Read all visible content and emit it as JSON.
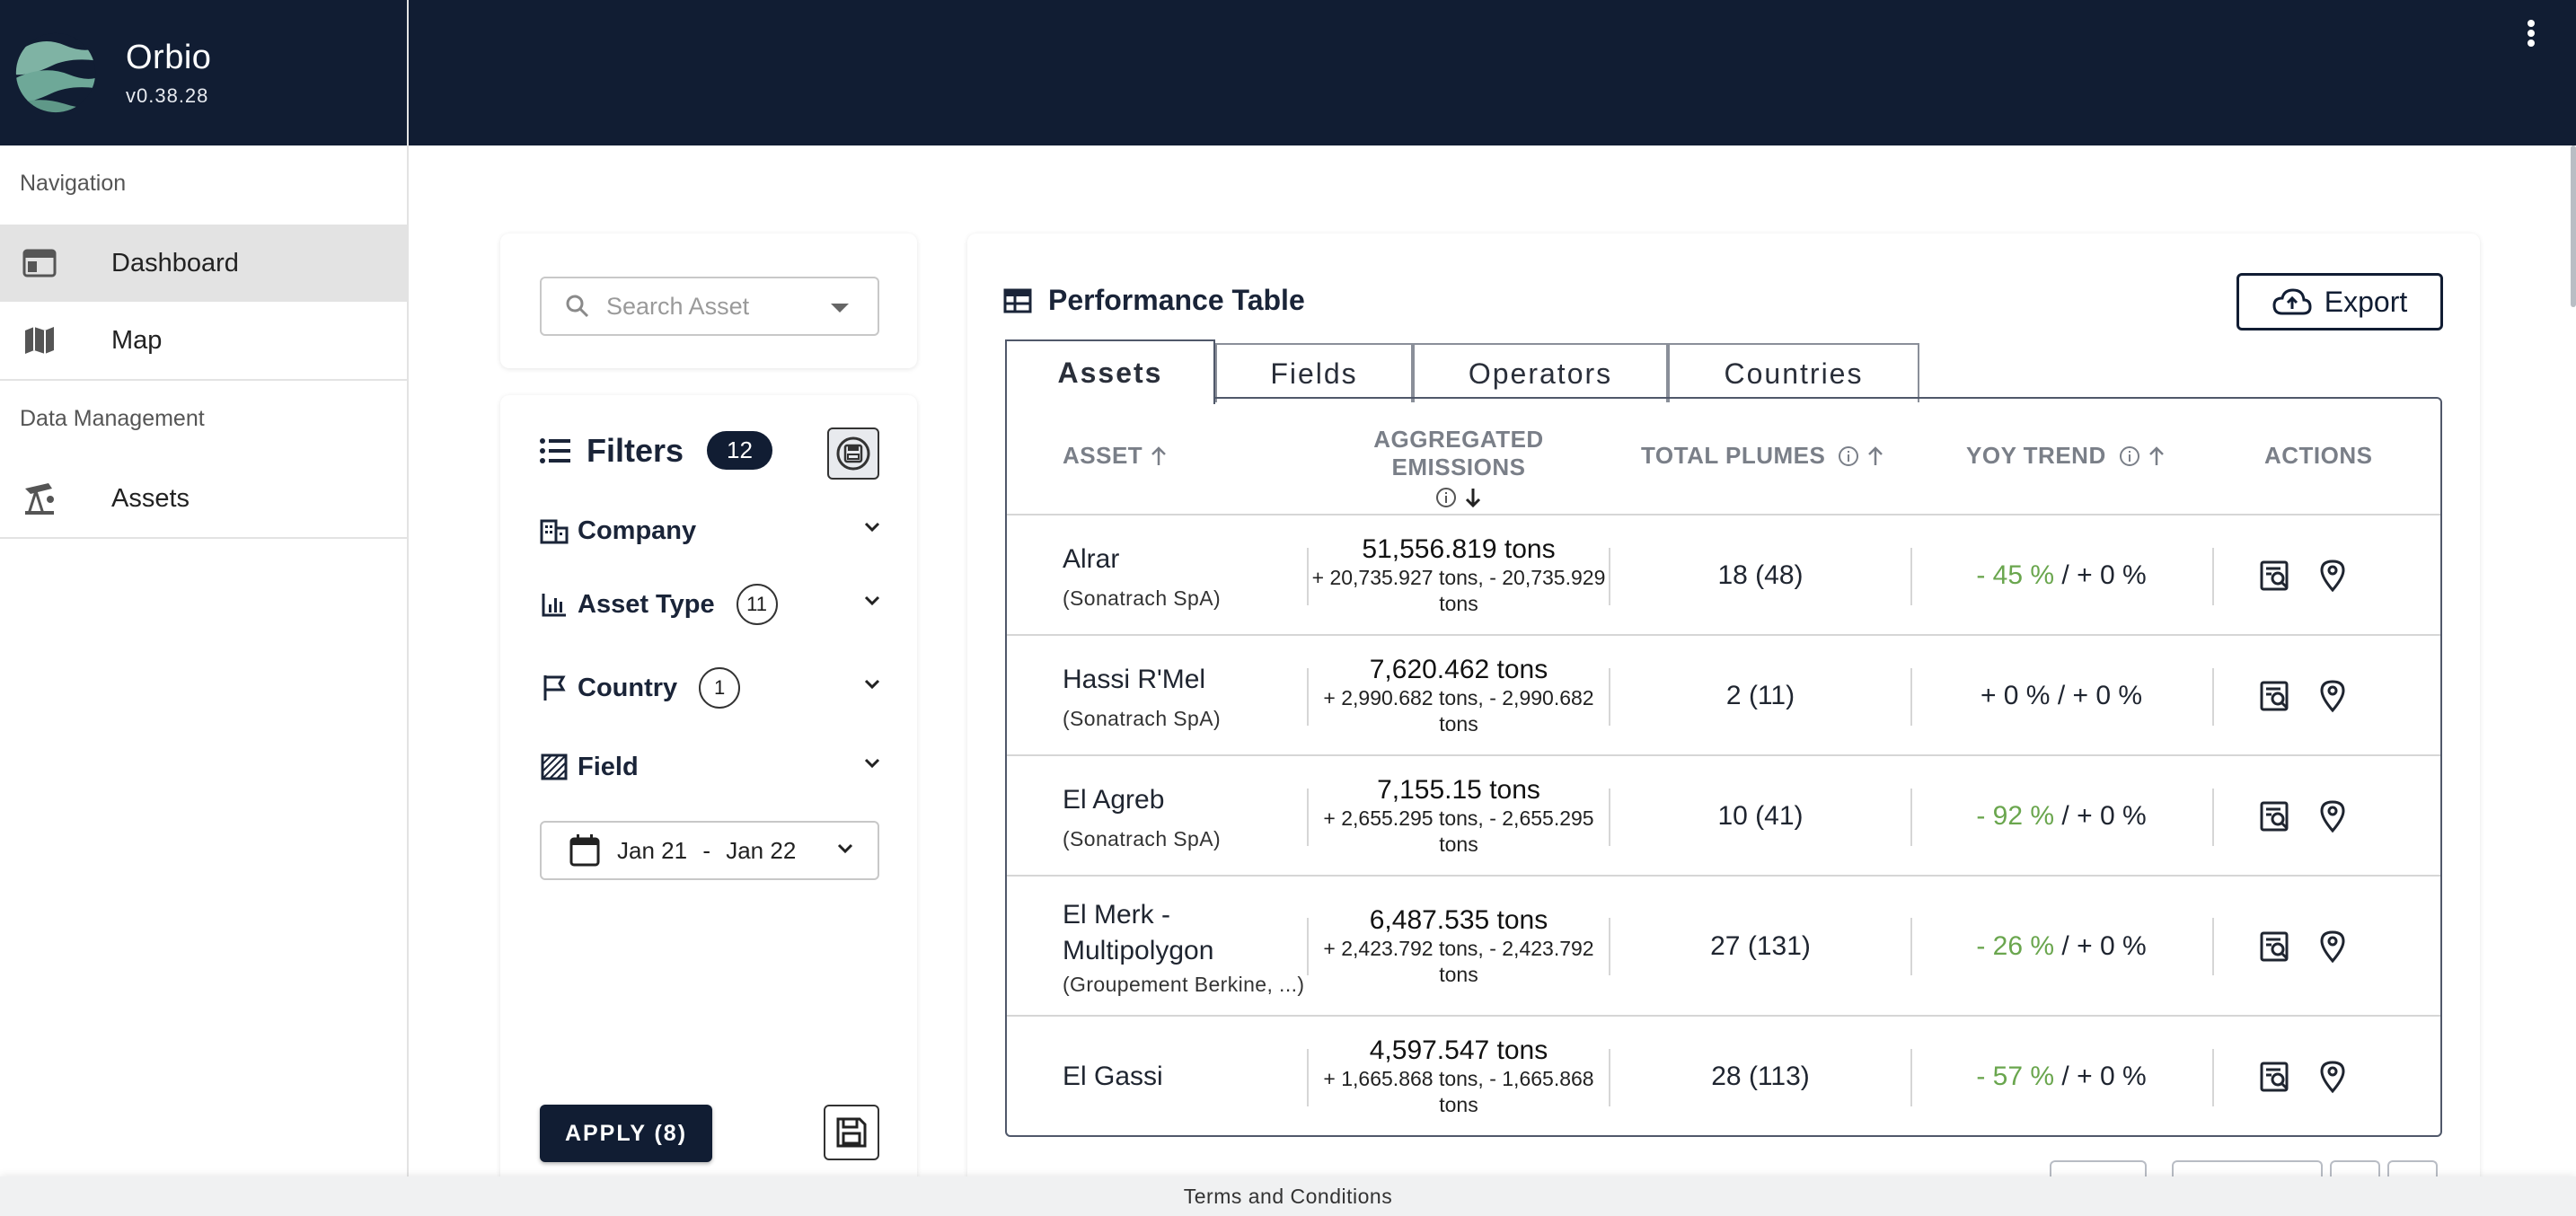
{
  "app": {
    "name": "Orbio",
    "version": "v0.38.28"
  },
  "sidebar": {
    "sections": [
      {
        "title": "Navigation",
        "items": [
          {
            "label": "Dashboard",
            "icon": "dashboard-icon",
            "active": true
          },
          {
            "label": "Map",
            "icon": "map-icon",
            "active": false
          }
        ]
      },
      {
        "title": "Data Management",
        "items": [
          {
            "label": "Assets",
            "icon": "oil-pump-icon",
            "active": false
          }
        ]
      }
    ]
  },
  "search": {
    "placeholder": "Search Asset"
  },
  "filters": {
    "title": "Filters",
    "count": "12",
    "items": [
      {
        "label": "Company",
        "icon": "building-icon",
        "count": null
      },
      {
        "label": "Asset Type",
        "icon": "bar-chart-icon",
        "count": "11"
      },
      {
        "label": "Country",
        "icon": "flag-icon",
        "count": "1"
      },
      {
        "label": "Field",
        "icon": "hatched-square-icon",
        "count": null
      }
    ],
    "date_range": {
      "start": "Jan 21",
      "separator": "-",
      "end": "Jan 22"
    },
    "apply_label": "APPLY (8)"
  },
  "performance": {
    "title": "Performance Table",
    "export_label": "Export",
    "tabs": [
      "Assets",
      "Fields",
      "Operators",
      "Countries"
    ],
    "active_tab": "Assets",
    "columns": {
      "asset": "ASSET",
      "emissions_line1": "AGGREGATED EMISSIONS",
      "plumes": "TOTAL PLUMES",
      "yoy": "YOY TREND",
      "actions": "ACTIONS"
    },
    "rows": [
      {
        "asset": "Alrar",
        "company": "(Sonatrach SpA)",
        "emissions": "51,556.819 tons",
        "range": "+ 20,735.927 tons, - 20,735.929 tons",
        "plumes": "18 (48)",
        "yoy_a": "- 45 %",
        "yoy_b": " / + 0 %",
        "yoy_negative": true
      },
      {
        "asset": "Hassi R'Mel",
        "company": "(Sonatrach SpA)",
        "emissions": "7,620.462 tons",
        "range": "+ 2,990.682 tons, - 2,990.682 tons",
        "plumes": "2 (11)",
        "yoy_a": "+ 0 %",
        "yoy_b": " / + 0 %",
        "yoy_negative": false
      },
      {
        "asset": "El Agreb",
        "company": "(Sonatrach SpA)",
        "emissions": "7,155.15 tons",
        "range": "+ 2,655.295 tons, - 2,655.295 tons",
        "plumes": "10 (41)",
        "yoy_a": "- 92 %",
        "yoy_b": " / + 0 %",
        "yoy_negative": true
      },
      {
        "asset": "El Merk - Multipolygon",
        "company": "(Groupement Berkine, ...)",
        "emissions": "6,487.535 tons",
        "range": "+ 2,423.792 tons, - 2,423.792 tons",
        "plumes": "27 (131)",
        "yoy_a": "- 26 %",
        "yoy_b": " / + 0 %",
        "yoy_negative": true
      },
      {
        "asset": "El Gassi",
        "company": "",
        "emissions": "4,597.547 tons",
        "range": "+ 1,665.868 tons, - 1,665.868 tons",
        "plumes": "28 (113)",
        "yoy_a": "- 57 %",
        "yoy_b": " / + 0 %",
        "yoy_negative": true
      }
    ]
  },
  "footer": {
    "terms": "Terms and Conditions"
  },
  "colors": {
    "navy": "#111d33",
    "trend_green": "#6aa64e",
    "active_nav_bg": "#e3e3e3"
  }
}
